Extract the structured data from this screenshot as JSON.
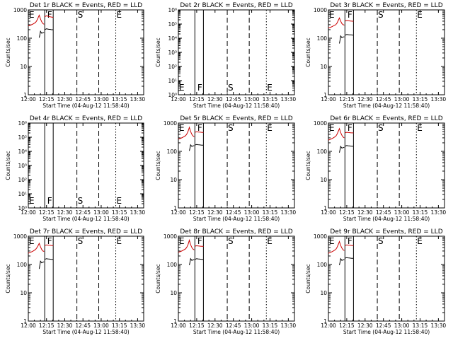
{
  "colors": {
    "events": "#000000",
    "lld": "#cc0000",
    "axis": "#000000"
  },
  "x_tick_labels": [
    "12:00",
    "12:15",
    "12:30",
    "12:45",
    "13:00",
    "13:15",
    "13:30"
  ],
  "xlabel": "Start Time (04-Aug-12 11:58:40)",
  "ylabel": "Counts/sec",
  "marker_letters": [
    "E",
    "F",
    "S",
    "E"
  ],
  "chart_data": [
    {
      "type": "line",
      "title": "Det 1r BLACK = Events, RED = LLD",
      "scale": "log",
      "ylim": [
        1,
        1000
      ],
      "y_ticks": [
        "1",
        "10",
        "100",
        "1000"
      ],
      "x_range_min": [
        0,
        95
      ],
      "solid_lines": [
        13.5,
        20.5
      ],
      "dashed_lines": [
        40,
        58
      ],
      "dotted_lines": [
        72
      ],
      "markers_x": [
        0,
        15,
        40,
        72
      ],
      "series": [
        {
          "name": "LLD",
          "color": "red",
          "x": [
            0,
            2,
            4,
            6,
            7,
            8,
            9,
            10,
            11,
            12,
            13
          ],
          "y": [
            270,
            290,
            320,
            360,
            420,
            520,
            650,
            480,
            380,
            330,
            310
          ]
        },
        {
          "name": "LLD",
          "color": "red",
          "x": [
            13.5,
            14,
            15,
            16,
            17,
            18,
            19,
            20,
            20.5
          ],
          "y": [
            560,
            590,
            620,
            600,
            580,
            570,
            560,
            550,
            540
          ]
        },
        {
          "name": "Events",
          "color": "black",
          "x": [
            9,
            9.5,
            10,
            11,
            12,
            13
          ],
          "y": [
            105,
            130,
            175,
            150,
            155,
            160
          ]
        },
        {
          "name": "Events",
          "color": "black",
          "x": [
            13.5,
            14,
            15,
            16,
            17,
            18,
            19,
            20,
            20.5
          ],
          "y": [
            195,
            205,
            215,
            210,
            205,
            205,
            200,
            200,
            198
          ]
        }
      ]
    },
    {
      "type": "line",
      "title": "Det 2r BLACK = Events, RED = LLD",
      "scale": "log",
      "ylim": [
        1,
        1000000
      ],
      "y_ticks": [
        "10⁰",
        "10¹",
        "10²",
        "10³",
        "10⁴",
        "10⁵",
        "10⁶"
      ],
      "x_range_min": [
        0,
        95
      ],
      "solid_lines": [
        13.5,
        20.5
      ],
      "dashed_lines": [
        40,
        58
      ],
      "dotted_lines": [
        72
      ],
      "markers_x": [
        0,
        15,
        40,
        72
      ],
      "series": []
    },
    {
      "type": "line",
      "title": "Det 3r BLACK = Events, RED = LLD",
      "scale": "log",
      "ylim": [
        1,
        1000
      ],
      "y_ticks": [
        "1",
        "10",
        "100",
        "1000"
      ],
      "x_range_min": [
        0,
        95
      ],
      "solid_lines": [
        13.5,
        20.5
      ],
      "dashed_lines": [
        40,
        58
      ],
      "dotted_lines": [
        72
      ],
      "markers_x": [
        0,
        15,
        40,
        72
      ],
      "series": [
        {
          "name": "LLD",
          "color": "red",
          "x": [
            0,
            2,
            4,
            6,
            7,
            8,
            9,
            10,
            11,
            12,
            13
          ],
          "y": [
            230,
            245,
            270,
            300,
            340,
            420,
            520,
            400,
            330,
            300,
            290
          ]
        },
        {
          "name": "LLD",
          "color": "red",
          "x": [
            13.5,
            14,
            15,
            16,
            17,
            18,
            19,
            20,
            20.5
          ],
          "y": [
            400,
            410,
            420,
            415,
            410,
            405,
            400,
            398,
            395
          ]
        },
        {
          "name": "Events",
          "color": "black",
          "x": [
            9,
            9.5,
            10,
            11,
            12,
            13
          ],
          "y": [
            65,
            85,
            120,
            105,
            110,
            112
          ]
        },
        {
          "name": "Events",
          "color": "black",
          "x": [
            13.5,
            14,
            15,
            16,
            17,
            18,
            19,
            20,
            20.5
          ],
          "y": [
            125,
            130,
            135,
            133,
            132,
            131,
            130,
            129,
            128
          ]
        }
      ]
    },
    {
      "type": "line",
      "title": "Det 4r BLACK = Events, RED = LLD",
      "scale": "log",
      "ylim": [
        1,
        1000000
      ],
      "y_ticks": [
        "10⁰",
        "10¹",
        "10²",
        "10³",
        "10⁴",
        "10⁵",
        "10⁶"
      ],
      "x_range_min": [
        0,
        95
      ],
      "solid_lines": [
        13.5,
        20.5
      ],
      "dashed_lines": [
        40,
        58
      ],
      "dotted_lines": [
        72
      ],
      "markers_x": [
        0,
        15,
        40,
        72
      ],
      "series": []
    },
    {
      "type": "line",
      "title": "Det 5r BLACK = Events, RED = LLD",
      "scale": "log",
      "ylim": [
        1,
        1000
      ],
      "y_ticks": [
        "1",
        "10",
        "100",
        "1000"
      ],
      "x_range_min": [
        0,
        95
      ],
      "solid_lines": [
        13.5,
        20.5
      ],
      "dashed_lines": [
        40,
        58
      ],
      "dotted_lines": [
        72
      ],
      "markers_x": [
        0,
        15,
        40,
        72
      ],
      "series": [
        {
          "name": "LLD",
          "color": "red",
          "x": [
            0,
            2,
            4,
            6,
            7,
            8,
            9,
            10,
            11,
            12,
            13
          ],
          "y": [
            270,
            290,
            320,
            360,
            420,
            520,
            700,
            500,
            400,
            350,
            330
          ]
        },
        {
          "name": "LLD",
          "color": "red",
          "x": [
            13.5,
            14,
            15,
            16,
            17,
            18,
            19,
            20,
            20.5
          ],
          "y": [
            470,
            480,
            490,
            485,
            480,
            475,
            470,
            468,
            465
          ]
        },
        {
          "name": "Events",
          "color": "black",
          "x": [
            9,
            9.5,
            10,
            11,
            12,
            13
          ],
          "y": [
            105,
            130,
            170,
            150,
            155,
            160
          ]
        },
        {
          "name": "Events",
          "color": "black",
          "x": [
            13.5,
            14,
            15,
            16,
            17,
            18,
            19,
            20,
            20.5
          ],
          "y": [
            165,
            170,
            175,
            172,
            170,
            168,
            166,
            165,
            164
          ]
        }
      ]
    },
    {
      "type": "line",
      "title": "Det 6r BLACK = Events, RED = LLD",
      "scale": "log",
      "ylim": [
        1,
        1000
      ],
      "y_ticks": [
        "1",
        "10",
        "100",
        "1000"
      ],
      "x_range_min": [
        0,
        95
      ],
      "solid_lines": [
        13.5,
        20.5
      ],
      "dashed_lines": [
        40,
        58
      ],
      "dotted_lines": [
        72
      ],
      "markers_x": [
        0,
        15,
        40,
        72
      ],
      "series": [
        {
          "name": "LLD",
          "color": "red",
          "x": [
            0,
            2,
            4,
            6,
            7,
            8,
            9,
            10,
            11,
            12,
            13
          ],
          "y": [
            250,
            270,
            300,
            340,
            400,
            500,
            640,
            460,
            370,
            320,
            300
          ]
        },
        {
          "name": "LLD",
          "color": "red",
          "x": [
            13.5,
            14,
            15,
            16,
            17,
            18,
            19,
            20,
            20.5
          ],
          "y": [
            450,
            460,
            470,
            465,
            460,
            455,
            450,
            448,
            445
          ]
        },
        {
          "name": "Events",
          "color": "black",
          "x": [
            9,
            9.5,
            10,
            11,
            12,
            13
          ],
          "y": [
            90,
            115,
            150,
            130,
            135,
            140
          ]
        },
        {
          "name": "Events",
          "color": "black",
          "x": [
            13.5,
            14,
            15,
            16,
            17,
            18,
            19,
            20,
            20.5
          ],
          "y": [
            150,
            155,
            160,
            158,
            156,
            154,
            152,
            151,
            150
          ]
        }
      ]
    },
    {
      "type": "line",
      "title": "Det 7r BLACK = Events, RED = LLD",
      "scale": "log",
      "ylim": [
        1,
        1000
      ],
      "y_ticks": [
        "1",
        "10",
        "100",
        "1000"
      ],
      "x_range_min": [
        0,
        95
      ],
      "solid_lines": [
        13.5,
        20.5
      ],
      "dashed_lines": [
        40,
        58
      ],
      "dotted_lines": [
        72
      ],
      "markers_x": [
        0,
        15,
        40,
        72
      ],
      "series": [
        {
          "name": "LLD",
          "color": "red",
          "x": [
            0,
            2,
            4,
            6,
            7,
            8,
            9,
            10,
            11,
            12,
            13
          ],
          "y": [
            250,
            270,
            300,
            340,
            390,
            460,
            560,
            420,
            340,
            300,
            290
          ]
        },
        {
          "name": "LLD",
          "color": "red",
          "x": [
            13.5,
            14,
            15,
            16,
            17,
            18,
            19,
            20,
            20.5
          ],
          "y": [
            470,
            480,
            490,
            485,
            480,
            475,
            470,
            468,
            465
          ]
        },
        {
          "name": "Events",
          "color": "black",
          "x": [
            9,
            9.5,
            10,
            11,
            12,
            13
          ],
          "y": [
            70,
            95,
            130,
            115,
            120,
            125
          ]
        },
        {
          "name": "Events",
          "color": "black",
          "x": [
            13.5,
            14,
            15,
            16,
            17,
            18,
            19,
            20,
            20.5
          ],
          "y": [
            150,
            155,
            160,
            158,
            156,
            154,
            152,
            151,
            150
          ]
        }
      ]
    },
    {
      "type": "line",
      "title": "Det 8r BLACK = Events, RED = LLD",
      "scale": "log",
      "ylim": [
        1,
        1000
      ],
      "y_ticks": [
        "1",
        "10",
        "100",
        "1000"
      ],
      "x_range_min": [
        0,
        95
      ],
      "solid_lines": [
        13.5,
        20.5
      ],
      "dashed_lines": [
        40,
        58
      ],
      "dotted_lines": [
        72
      ],
      "markers_x": [
        0,
        15,
        40,
        72
      ],
      "series": [
        {
          "name": "LLD",
          "color": "red",
          "x": [
            0,
            2,
            4,
            6,
            7,
            8,
            9,
            10,
            11,
            12,
            13
          ],
          "y": [
            270,
            290,
            320,
            360,
            420,
            520,
            720,
            500,
            400,
            350,
            330
          ]
        },
        {
          "name": "LLD",
          "color": "red",
          "x": [
            13.5,
            14,
            15,
            16,
            17,
            18,
            19,
            20,
            20.5
          ],
          "y": [
            440,
            450,
            460,
            455,
            450,
            445,
            440,
            438,
            435
          ]
        },
        {
          "name": "Events",
          "color": "black",
          "x": [
            9,
            9.5,
            10,
            11,
            12,
            13
          ],
          "y": [
            95,
            120,
            160,
            140,
            145,
            150
          ]
        },
        {
          "name": "Events",
          "color": "black",
          "x": [
            13.5,
            14,
            15,
            16,
            17,
            18,
            19,
            20,
            20.5
          ],
          "y": [
            150,
            155,
            160,
            158,
            156,
            154,
            152,
            151,
            150
          ]
        }
      ]
    },
    {
      "type": "line",
      "title": "Det 9r BLACK = Events, RED = LLD",
      "scale": "log",
      "ylim": [
        1,
        1000
      ],
      "y_ticks": [
        "1",
        "10",
        "100",
        "1000"
      ],
      "x_range_min": [
        0,
        95
      ],
      "solid_lines": [
        13.5,
        20.5
      ],
      "dashed_lines": [
        40,
        58
      ],
      "dotted_lines": [
        72
      ],
      "markers_x": [
        0,
        15,
        40,
        72
      ],
      "series": [
        {
          "name": "LLD",
          "color": "red",
          "x": [
            0,
            2,
            4,
            6,
            7,
            8,
            9,
            10,
            11,
            12,
            13
          ],
          "y": [
            250,
            270,
            300,
            340,
            400,
            500,
            650,
            470,
            380,
            330,
            310
          ]
        },
        {
          "name": "LLD",
          "color": "red",
          "x": [
            13.5,
            14,
            15,
            16,
            17,
            18,
            19,
            20,
            20.5
          ],
          "y": [
            470,
            480,
            490,
            485,
            480,
            475,
            470,
            468,
            465
          ]
        },
        {
          "name": "Events",
          "color": "black",
          "x": [
            9,
            9.5,
            10,
            11,
            12,
            13
          ],
          "y": [
            95,
            120,
            160,
            140,
            145,
            150
          ]
        },
        {
          "name": "Events",
          "color": "black",
          "x": [
            13.5,
            14,
            15,
            16,
            17,
            18,
            19,
            20,
            20.5
          ],
          "y": [
            165,
            170,
            175,
            172,
            170,
            168,
            166,
            165,
            164
          ]
        }
      ]
    }
  ]
}
